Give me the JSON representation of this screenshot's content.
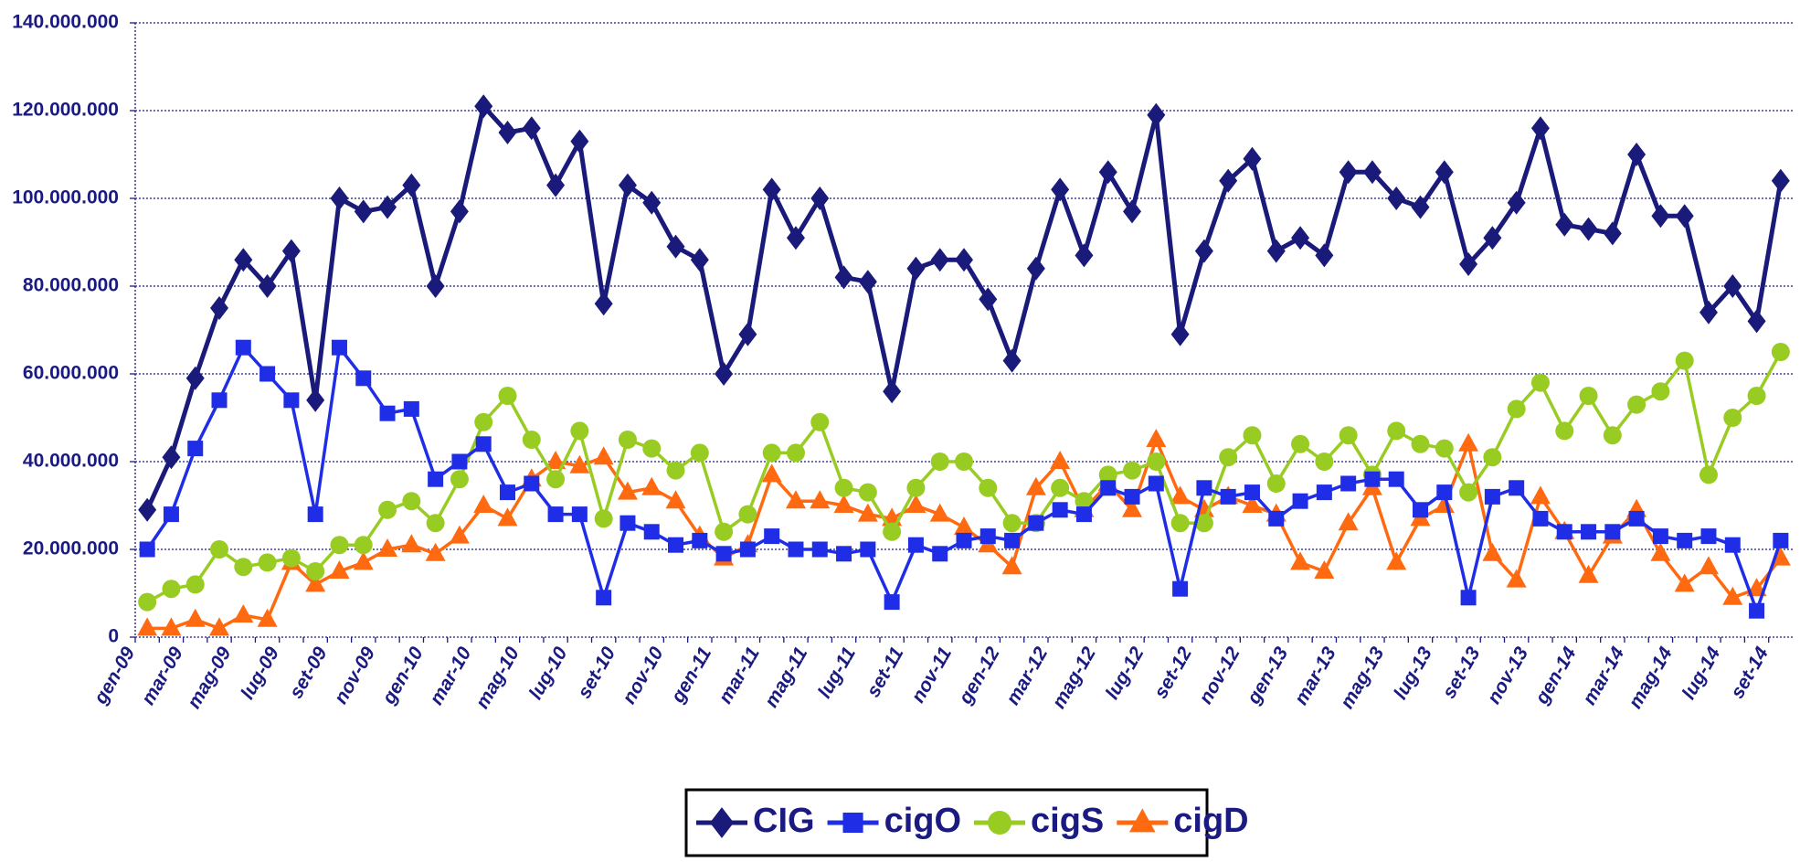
{
  "chart_data": {
    "type": "line",
    "categories": [
      "gen-09",
      null,
      "mar-09",
      null,
      "mag-09",
      null,
      "lug-09",
      null,
      "set-09",
      null,
      "nov-09",
      null,
      "gen-10",
      null,
      "mar-10",
      null,
      "mag-10",
      null,
      "lug-10",
      null,
      "set-10",
      null,
      "nov-10",
      null,
      "gen-11",
      null,
      "mar-11",
      null,
      "mag-11",
      null,
      "lug-11",
      null,
      "set-11",
      null,
      "nov-11",
      null,
      "gen-12",
      null,
      "mar-12",
      null,
      "mag-12",
      null,
      "lug-12",
      null,
      "set-12",
      null,
      "nov-12",
      null,
      "gen-13",
      null,
      "mar-13",
      null,
      "mag-13",
      null,
      "lug-13",
      null,
      "set-13",
      null,
      "nov-13",
      null,
      "gen-14",
      null,
      "mar-14",
      null,
      "mag-14",
      null,
      "lug-14",
      null,
      "set-14"
    ],
    "series": [
      {
        "name": "CIG",
        "color": "#1a1a7a",
        "marker": "diamond",
        "values": [
          29000000,
          41000000,
          59000000,
          75000000,
          86000000,
          80000000,
          88000000,
          54000000,
          100000000,
          97000000,
          98000000,
          103000000,
          80000000,
          97000000,
          121000000,
          115000000,
          116000000,
          103000000,
          113000000,
          76000000,
          103000000,
          99000000,
          89000000,
          86000000,
          60000000,
          69000000,
          102000000,
          91000000,
          100000000,
          82000000,
          81000000,
          56000000,
          84000000,
          86000000,
          86000000,
          77000000,
          63000000,
          84000000,
          102000000,
          87000000,
          106000000,
          97000000,
          119000000,
          69000000,
          88000000,
          104000000,
          109000000,
          88000000,
          91000000,
          87000000,
          106000000,
          106000000,
          100000000,
          98000000,
          106000000,
          85000000,
          91000000,
          99000000,
          116000000,
          94000000,
          93000000,
          92000000,
          110000000,
          96000000,
          96000000,
          74000000,
          80000000,
          72000000,
          104000000
        ]
      },
      {
        "name": "cigO",
        "color": "#1f2ee6",
        "marker": "square",
        "values": [
          20000000,
          28000000,
          43000000,
          54000000,
          66000000,
          60000000,
          54000000,
          28000000,
          66000000,
          59000000,
          51000000,
          52000000,
          36000000,
          40000000,
          44000000,
          33000000,
          35000000,
          28000000,
          28000000,
          9000000,
          26000000,
          24000000,
          21000000,
          22000000,
          19000000,
          20000000,
          23000000,
          20000000,
          20000000,
          19000000,
          20000000,
          8000000,
          21000000,
          19000000,
          22000000,
          23000000,
          22000000,
          26000000,
          29000000,
          28000000,
          34000000,
          32000000,
          35000000,
          11000000,
          34000000,
          32000000,
          33000000,
          27000000,
          31000000,
          33000000,
          35000000,
          36000000,
          36000000,
          29000000,
          33000000,
          9000000,
          32000000,
          34000000,
          27000000,
          24000000,
          24000000,
          24000000,
          27000000,
          23000000,
          22000000,
          23000000,
          21000000,
          6000000,
          22000000
        ]
      },
      {
        "name": "cigS",
        "color": "#99cc22",
        "marker": "circle",
        "values": [
          8000000,
          11000000,
          12000000,
          20000000,
          16000000,
          17000000,
          18000000,
          15000000,
          21000000,
          21000000,
          29000000,
          31000000,
          26000000,
          36000000,
          49000000,
          55000000,
          45000000,
          36000000,
          47000000,
          27000000,
          45000000,
          43000000,
          38000000,
          42000000,
          24000000,
          28000000,
          42000000,
          42000000,
          49000000,
          34000000,
          33000000,
          24000000,
          34000000,
          40000000,
          40000000,
          34000000,
          26000000,
          26000000,
          34000000,
          31000000,
          37000000,
          38000000,
          40000000,
          26000000,
          26000000,
          41000000,
          46000000,
          35000000,
          44000000,
          40000000,
          46000000,
          37000000,
          47000000,
          44000000,
          43000000,
          33000000,
          41000000,
          52000000,
          58000000,
          47000000,
          55000000,
          46000000,
          53000000,
          56000000,
          63000000,
          37000000,
          50000000,
          55000000,
          65000000
        ]
      },
      {
        "name": "cigD",
        "color": "#ff6a10",
        "marker": "triangle",
        "values": [
          2000000,
          2000000,
          4000000,
          2000000,
          5000000,
          4000000,
          17000000,
          12000000,
          15000000,
          17000000,
          20000000,
          21000000,
          19000000,
          23000000,
          30000000,
          27000000,
          36000000,
          40000000,
          39000000,
          41000000,
          33000000,
          34000000,
          31000000,
          23000000,
          18000000,
          21000000,
          37000000,
          31000000,
          31000000,
          30000000,
          28000000,
          27000000,
          30000000,
          28000000,
          25000000,
          21000000,
          16000000,
          34000000,
          40000000,
          29000000,
          35000000,
          29000000,
          45000000,
          32000000,
          29000000,
          32000000,
          30000000,
          28000000,
          17000000,
          15000000,
          26000000,
          34000000,
          17000000,
          27000000,
          30000000,
          44000000,
          19000000,
          13000000,
          32000000,
          24000000,
          14000000,
          23000000,
          29000000,
          19000000,
          12000000,
          16000000,
          9000000,
          11000000,
          18000000
        ]
      }
    ],
    "ylim": [
      0,
      140000000
    ],
    "yticks": [
      {
        "value": 0,
        "label": "0"
      },
      {
        "value": 20000000,
        "label": "20.000.000"
      },
      {
        "value": 40000000,
        "label": "40.000.000"
      },
      {
        "value": 60000000,
        "label": "60.000.000"
      },
      {
        "value": 80000000,
        "label": "80.000.000"
      },
      {
        "value": 100000000,
        "label": "100.000.000"
      },
      {
        "value": 120000000,
        "label": "120.000.000"
      },
      {
        "value": 140000000,
        "label": "140.000.000"
      }
    ],
    "grid": true,
    "legend": "bottom"
  }
}
